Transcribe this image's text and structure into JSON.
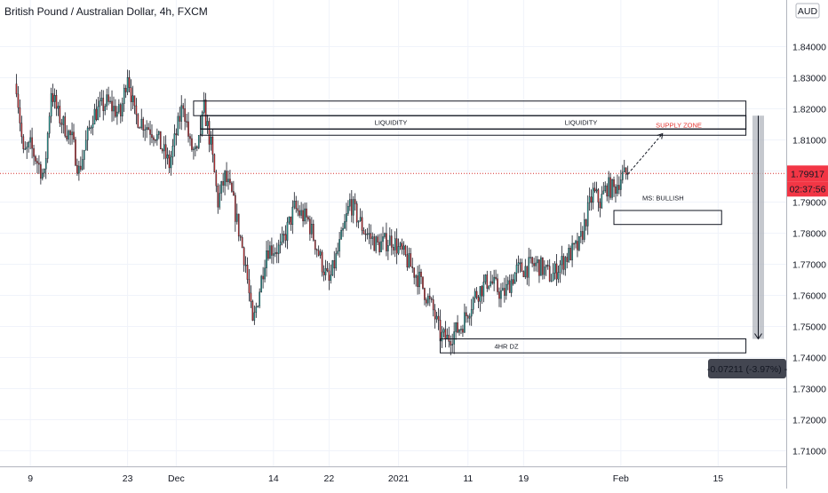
{
  "header": {
    "title": "British Pound / Australian Dollar, 4h, FXCM"
  },
  "currency_badge": "AUD",
  "price_tag": {
    "price": "1.79917",
    "countdown": "02:37:56",
    "color": "#f23645"
  },
  "measure_tag": "-0.07211 (-3.97%) -",
  "colors": {
    "up": "#26a69a",
    "down": "#d32f2f",
    "supply_text": "#e53935",
    "tag_bg": "#434651"
  },
  "chart_data": {
    "type": "candlestick",
    "symbol": "GBP/AUD",
    "timeframe": "4h",
    "source": "FXCM",
    "ylim": [
      1.705,
      1.855
    ],
    "y_ticks": [
      1.71,
      1.72,
      1.73,
      1.74,
      1.75,
      1.76,
      1.77,
      1.78,
      1.79,
      1.8,
      1.81,
      1.82,
      1.83,
      1.84
    ],
    "y_tick_labels": [
      "1.71000",
      "1.72000",
      "1.73000",
      "1.74000",
      "1.75000",
      "1.76000",
      "1.77000",
      "1.78000",
      "1.79000",
      "1.80000",
      "1.81000",
      "1.82000",
      "1.83000",
      "1.84000"
    ],
    "x_range_days": [
      0,
      63
    ],
    "x_ticks": [
      {
        "label": "9",
        "day": 2
      },
      {
        "label": "23",
        "day": 16
      },
      {
        "label": "Dec",
        "day": 23
      },
      {
        "label": "14",
        "day": 37
      },
      {
        "label": "22",
        "day": 45
      },
      {
        "label": "2021",
        "day": 55
      },
      {
        "label": "11",
        "day": 65
      },
      {
        "label": "19",
        "day": 73
      },
      {
        "label": "Feb",
        "day": 87
      },
      {
        "label": "15",
        "day": 101
      }
    ],
    "path_points": [
      [
        0,
        1.828
      ],
      [
        1,
        1.805
      ],
      [
        2,
        1.808
      ],
      [
        4,
        1.798
      ],
      [
        5,
        1.826
      ],
      [
        6,
        1.818
      ],
      [
        8,
        1.81
      ],
      [
        9,
        1.8
      ],
      [
        11,
        1.818
      ],
      [
        13,
        1.822
      ],
      [
        15,
        1.818
      ],
      [
        16,
        1.832
      ],
      [
        17,
        1.818
      ],
      [
        18,
        1.816
      ],
      [
        20,
        1.812
      ],
      [
        22,
        1.802
      ],
      [
        24,
        1.822
      ],
      [
        25,
        1.808
      ],
      [
        26,
        1.805
      ],
      [
        27,
        1.82
      ],
      [
        28,
        1.808
      ],
      [
        29,
        1.79
      ],
      [
        30,
        1.798
      ],
      [
        31,
        1.792
      ],
      [
        33,
        1.77
      ],
      [
        34,
        1.75
      ],
      [
        35,
        1.762
      ],
      [
        36,
        1.775
      ],
      [
        38,
        1.775
      ],
      [
        40,
        1.788
      ],
      [
        42,
        1.784
      ],
      [
        44,
        1.77
      ],
      [
        45,
        1.764
      ],
      [
        47,
        1.78
      ],
      [
        48,
        1.79
      ],
      [
        50,
        1.781
      ],
      [
        52,
        1.776
      ],
      [
        54,
        1.778
      ],
      [
        56,
        1.772
      ],
      [
        58,
        1.765
      ],
      [
        60,
        1.755
      ],
      [
        61,
        1.747
      ],
      [
        62,
        1.746
      ],
      [
        64,
        1.75
      ],
      [
        66,
        1.76
      ],
      [
        68,
        1.765
      ],
      [
        70,
        1.76
      ],
      [
        72,
        1.768
      ],
      [
        75,
        1.77
      ],
      [
        77,
        1.766
      ],
      [
        79,
        1.772
      ],
      [
        81,
        1.776
      ],
      [
        82,
        1.785
      ],
      [
        83,
        1.793
      ],
      [
        84,
        1.79
      ],
      [
        85,
        1.795
      ],
      [
        86,
        1.794
      ],
      [
        87,
        1.798
      ],
      [
        88,
        1.799
      ]
    ],
    "current_price": 1.79917,
    "last_price_line": 1.7992,
    "zones": [
      {
        "label": "",
        "top": 1.8225,
        "bottom": 1.8178,
        "day_start": 25.5,
        "day_end": 105
      },
      {
        "label": "LIQUIDITY",
        "top": 1.8178,
        "bottom": 1.8135,
        "day_start": 26.5,
        "day_end": 105
      },
      {
        "label": "LIQUIDITY",
        "top": 1.8178,
        "bottom": 1.8135,
        "day_start": 26.5,
        "day_end": 105
      },
      {
        "label": "",
        "top": 1.8135,
        "bottom": 1.8115,
        "day_start": 26.5,
        "day_end": 105
      },
      {
        "label": "4HR DZ",
        "top": 1.746,
        "bottom": 1.7415,
        "day_start": 61,
        "day_end": 105
      },
      {
        "label": "",
        "top": 1.7873,
        "bottom": 1.7828,
        "day_start": 86,
        "day_end": 101.5
      }
    ],
    "annotations": [
      {
        "text": "SUPPLY ZONE",
        "color": "#e53935"
      },
      {
        "text": "MS: BULLISH",
        "color": "#131722"
      }
    ],
    "projection": {
      "from": [
        88,
        1.799
      ],
      "to": [
        93,
        1.812
      ]
    },
    "measure": {
      "from": 1.8178,
      "to": 1.746,
      "change": -0.07211,
      "change_pct": -3.97
    }
  }
}
